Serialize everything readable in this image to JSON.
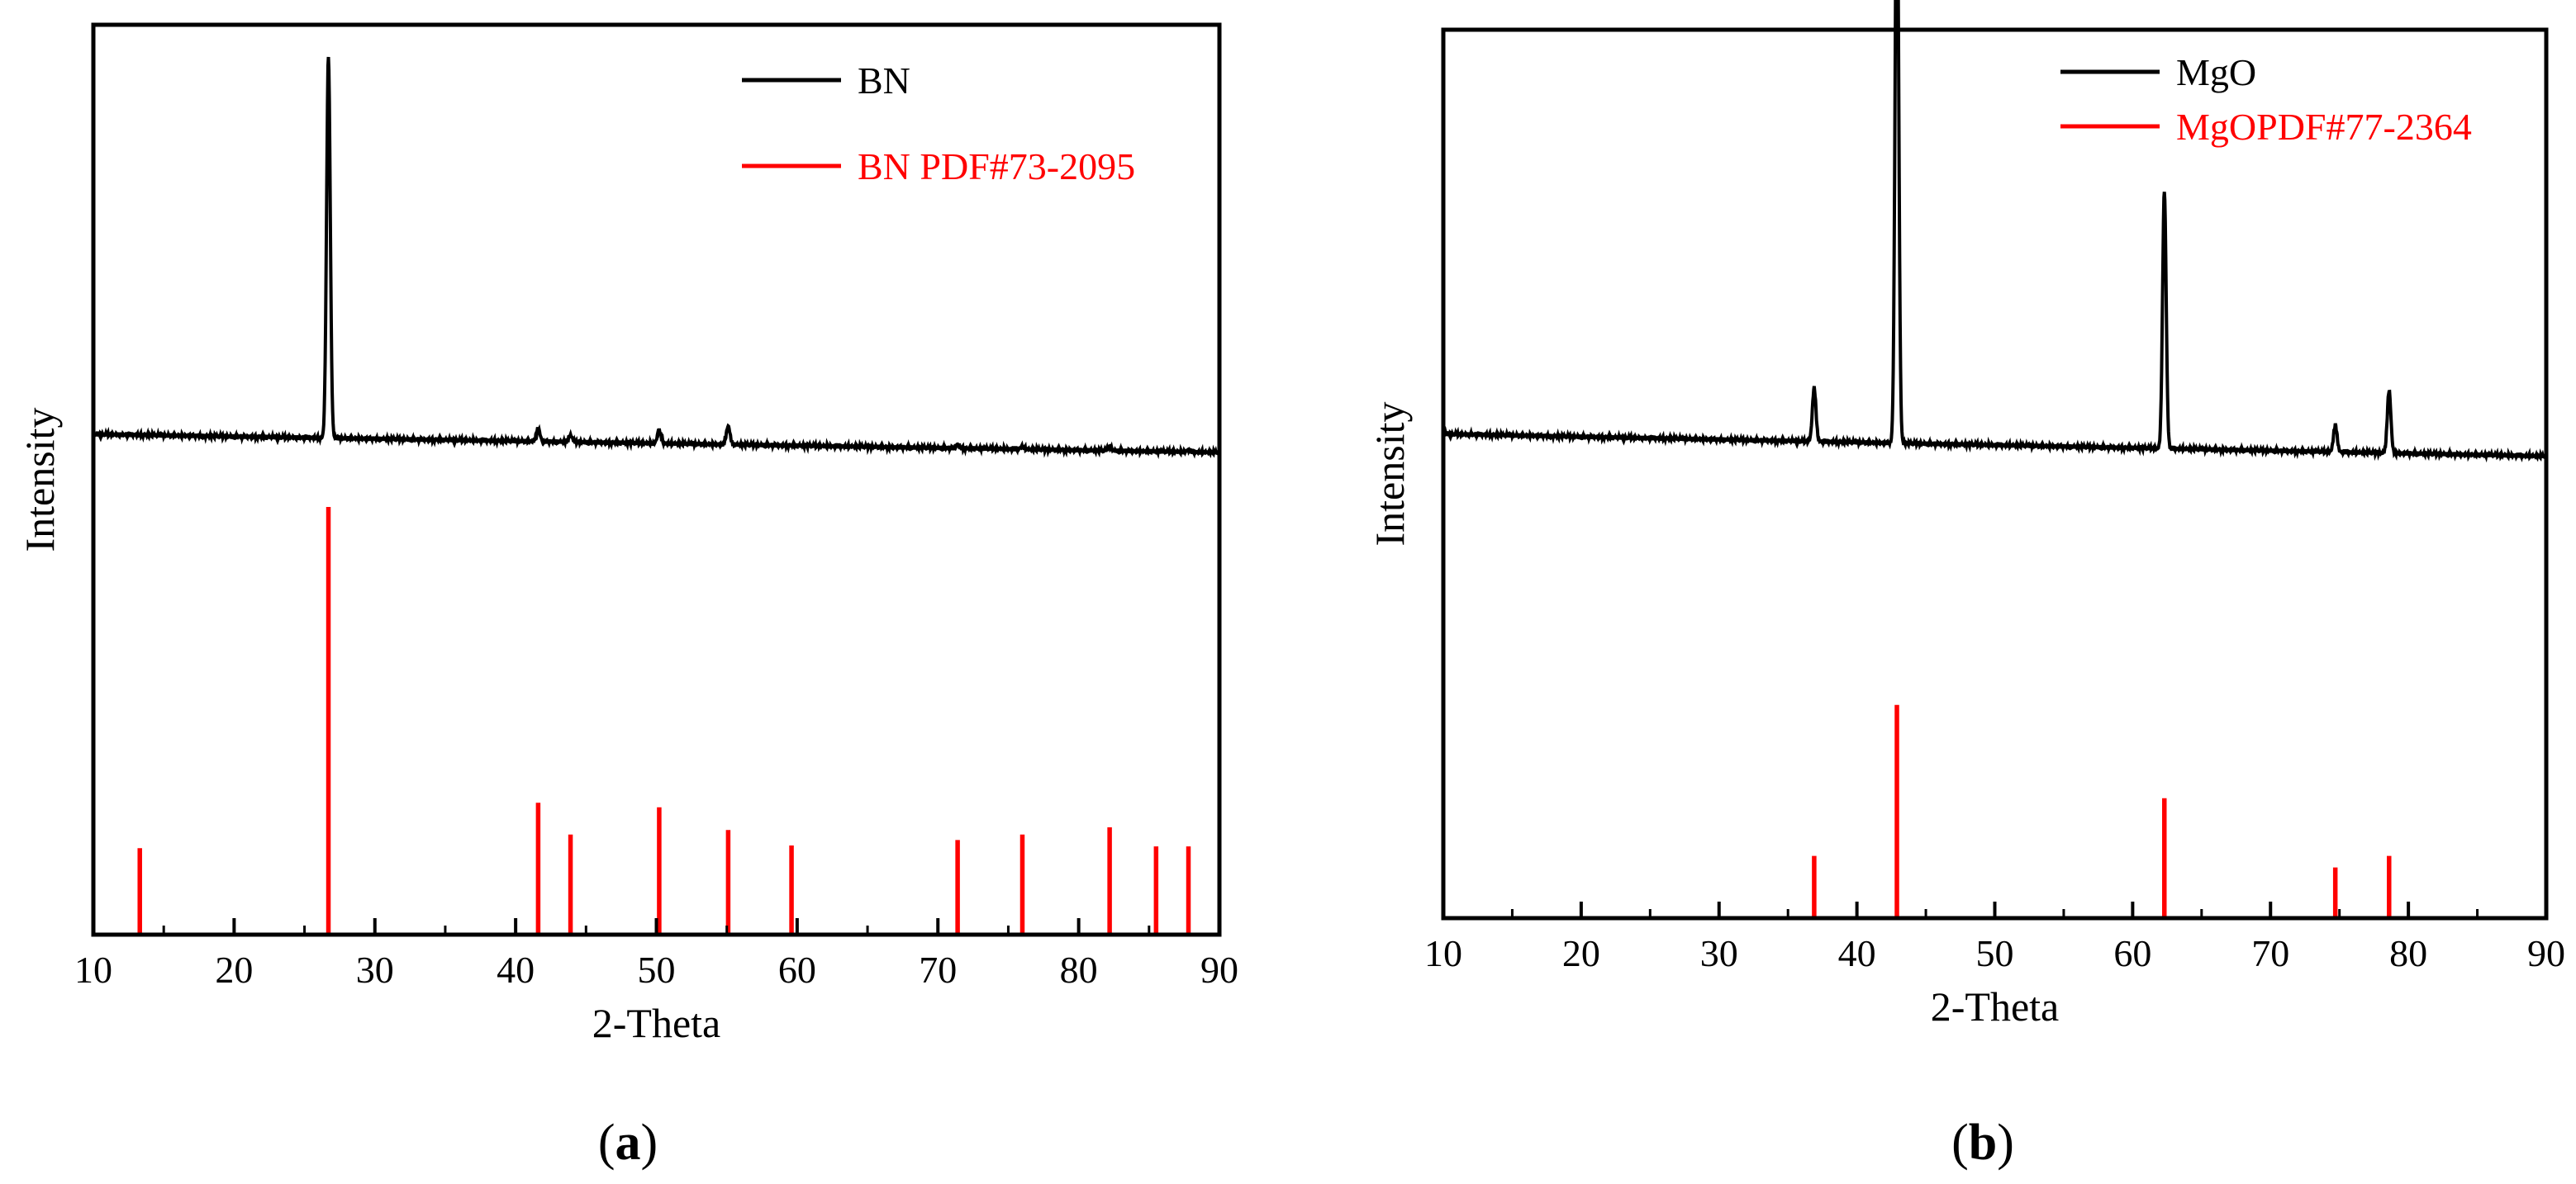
{
  "chart_data": [
    {
      "type": "line",
      "panel_label": "a",
      "xlabel": "2-Theta",
      "ylabel": "Intensity",
      "xlim": [
        10,
        90
      ],
      "x_ticks": [
        10,
        20,
        30,
        40,
        50,
        60,
        70,
        80,
        90
      ],
      "y_ticks_shown": false,
      "legend_position": "top-right",
      "series": [
        {
          "name": "BN",
          "kind": "pattern",
          "color": "#000000",
          "baseline": 0.55,
          "baseline_end": 0.53,
          "peaks": [
            {
              "x": 26.7,
              "height": 0.42
            },
            {
              "x": 41.6,
              "height": 0.014
            },
            {
              "x": 43.9,
              "height": 0.007
            },
            {
              "x": 50.2,
              "height": 0.014
            },
            {
              "x": 55.1,
              "height": 0.02
            },
            {
              "x": 71.4,
              "height": 0.004
            },
            {
              "x": 76.0,
              "height": 0.003
            },
            {
              "x": 82.2,
              "height": 0.004
            },
            {
              "x": 87.8,
              "height": 0.002
            }
          ]
        },
        {
          "name": "BN PDF#73-2095",
          "kind": "sticks",
          "color": "#ff0000",
          "sticks": [
            {
              "x": 13.3,
              "height": 0.095
            },
            {
              "x": 26.7,
              "height": 0.47
            },
            {
              "x": 41.6,
              "height": 0.145
            },
            {
              "x": 43.9,
              "height": 0.11
            },
            {
              "x": 50.2,
              "height": 0.14
            },
            {
              "x": 55.1,
              "height": 0.115
            },
            {
              "x": 59.6,
              "height": 0.098
            },
            {
              "x": 71.4,
              "height": 0.104
            },
            {
              "x": 76.0,
              "height": 0.11
            },
            {
              "x": 82.2,
              "height": 0.118
            },
            {
              "x": 85.5,
              "height": 0.097
            },
            {
              "x": 87.8,
              "height": 0.097
            }
          ]
        }
      ]
    },
    {
      "type": "line",
      "panel_label": "b",
      "xlabel": "2-Theta",
      "ylabel": "Intensity",
      "xlim": [
        10,
        90
      ],
      "x_ticks": [
        10,
        20,
        30,
        40,
        50,
        60,
        70,
        80,
        90
      ],
      "y_ticks_shown": false,
      "legend_position": "top-right",
      "series": [
        {
          "name": "MgO",
          "kind": "pattern",
          "color": "#000000",
          "baseline": 0.545,
          "baseline_end": 0.52,
          "peaks": [
            {
              "x": 36.9,
              "height": 0.06
            },
            {
              "x": 42.9,
              "height": 0.68
            },
            {
              "x": 62.3,
              "height": 0.29
            },
            {
              "x": 74.7,
              "height": 0.03
            },
            {
              "x": 78.6,
              "height": 0.07
            }
          ]
        },
        {
          "name": "MgOPDF#77-2364",
          "kind": "sticks",
          "color": "#ff0000",
          "sticks": [
            {
              "x": 36.9,
              "height": 0.07
            },
            {
              "x": 42.9,
              "height": 0.24
            },
            {
              "x": 62.3,
              "height": 0.135
            },
            {
              "x": 74.7,
              "height": 0.057
            },
            {
              "x": 78.6,
              "height": 0.07
            }
          ]
        }
      ]
    }
  ]
}
